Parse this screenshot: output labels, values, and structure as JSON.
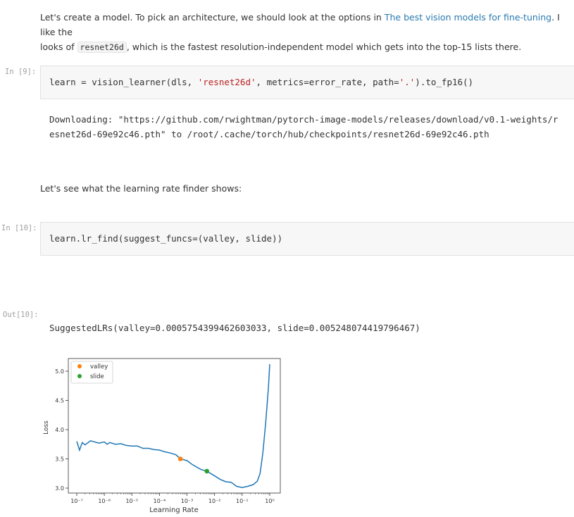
{
  "markdown1": {
    "before": "Let's create a model. To pick an architecture, we should look at the options in ",
    "link": "The best vision models for fine-tuning",
    "after_link": ". I like the",
    "line2_pre": "looks of ",
    "code": "resnet26d",
    "line2_post": ", which is the fastest resolution-independent model which gets into the top-15 lists there."
  },
  "cell9": {
    "prompt": "In [9]:",
    "code_a": "learn = vision_learner(dls, ",
    "code_str": "'resnet26d'",
    "code_b": ", metrics=error_rate, path=",
    "code_str2": "'.'",
    "code_c": ").to_fp16()",
    "output_line1": "Downloading: \"https://github.com/rwightman/pytorch-image-models/releases/download/v0.1-weights/r",
    "output_line2": "esnet26d-69e92c46.pth\" to /root/.cache/torch/hub/checkpoints/resnet26d-69e92c46.pth"
  },
  "markdown2": "Let's see what the learning rate finder shows:",
  "cell10": {
    "prompt": "In [10]:",
    "code": "learn.lr_find(suggest_funcs=(valley, slide))",
    "out_prompt": "Out[10]:",
    "output": "SuggestedLRs(valley=0.0005754399462603033, slide=0.005248074419796467)"
  },
  "chart_data": {
    "type": "line",
    "xlabel": "Learning Rate",
    "ylabel": "Loss",
    "xscale": "log",
    "xlim": [
      1e-07,
      1
    ],
    "ylim": [
      2.95,
      5.2
    ],
    "x_ticks": [
      {
        "v": -7,
        "label": "10⁻⁷"
      },
      {
        "v": -6,
        "label": "10⁻⁶"
      },
      {
        "v": -5,
        "label": "10⁻⁵"
      },
      {
        "v": -4,
        "label": "10⁻⁴"
      },
      {
        "v": -3,
        "label": "10⁻³"
      },
      {
        "v": -2,
        "label": "10⁻²"
      },
      {
        "v": -1,
        "label": "10⁻¹"
      },
      {
        "v": 0,
        "label": "10⁰"
      }
    ],
    "y_ticks": [
      {
        "v": 3.0,
        "label": "3.0"
      },
      {
        "v": 3.5,
        "label": "3.5"
      },
      {
        "v": 4.0,
        "label": "4.0"
      },
      {
        "v": 4.5,
        "label": "4.5"
      },
      {
        "v": 5.0,
        "label": "5.0"
      }
    ],
    "legend_position": "top-left",
    "grid": false,
    "series": [
      {
        "color": "#1f77b4",
        "log10_x": [
          -7,
          -6.9,
          -6.8,
          -6.7,
          -6.5,
          -6.2,
          -6,
          -5.9,
          -5.8,
          -5.6,
          -5.4,
          -5.2,
          -5,
          -4.8,
          -4.6,
          -4.4,
          -4.2,
          -4,
          -3.8,
          -3.6,
          -3.4,
          -3.24,
          -3,
          -2.8,
          -2.5,
          -2.28,
          -2,
          -1.8,
          -1.6,
          -1.4,
          -1.2,
          -1,
          -0.8,
          -0.6,
          -0.45,
          -0.35,
          -0.25,
          -0.15,
          -0.05,
          0
        ],
        "y": [
          3.8,
          3.65,
          3.78,
          3.74,
          3.81,
          3.77,
          3.79,
          3.75,
          3.78,
          3.75,
          3.76,
          3.73,
          3.72,
          3.72,
          3.68,
          3.68,
          3.66,
          3.65,
          3.62,
          3.6,
          3.57,
          3.5,
          3.47,
          3.4,
          3.32,
          3.29,
          3.21,
          3.15,
          3.11,
          3.1,
          3.03,
          3.01,
          3.03,
          3.06,
          3.12,
          3.25,
          3.6,
          4.1,
          4.7,
          5.12
        ]
      }
    ],
    "points": [
      {
        "name": "valley",
        "x": 0.0005754399462603033,
        "y": 3.5,
        "color": "#ff7f0e"
      },
      {
        "name": "slide",
        "x": 0.005248074419796467,
        "y": 3.29,
        "color": "#2ca02c"
      }
    ]
  }
}
